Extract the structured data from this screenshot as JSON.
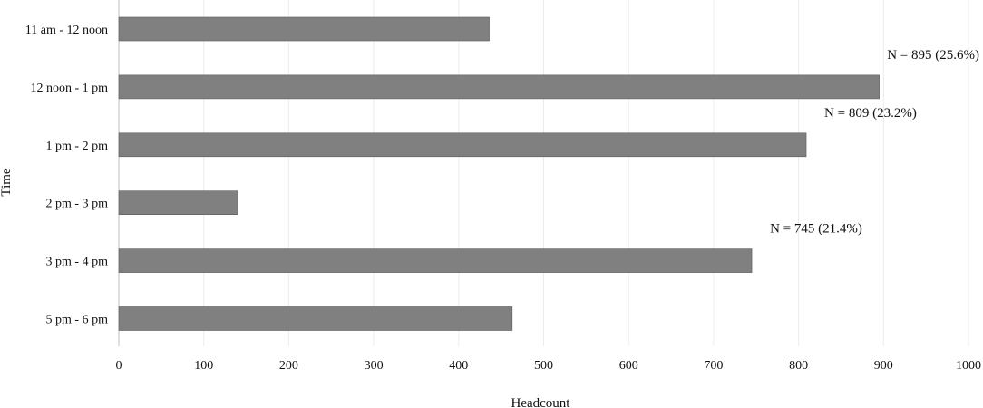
{
  "chart_data": {
    "type": "bar",
    "orientation": "horizontal",
    "categories": [
      "11 am - 12 noon",
      "12 noon - 1 pm",
      "1 pm - 2 pm",
      "2 pm - 3 pm",
      "3 pm - 4 pm",
      "5 pm - 6 pm"
    ],
    "values": [
      436,
      895,
      809,
      140,
      745,
      463
    ],
    "xlabel": "Headcount",
    "ylabel": "Time",
    "xlim": [
      0,
      1000
    ],
    "xticks": [
      0,
      100,
      200,
      300,
      400,
      500,
      600,
      700,
      800,
      900,
      1000
    ],
    "grid": true,
    "legend": "none",
    "bar_color": "#808080",
    "annotations": [
      {
        "text": "N = 895 (25.6%)",
        "category": "12 noon - 1 pm"
      },
      {
        "text": "N = 809 (23.2%)",
        "category": "1 pm - 2 pm"
      },
      {
        "text": "N = 745 (21.4%)",
        "category": "3 pm - 4 pm"
      }
    ]
  }
}
